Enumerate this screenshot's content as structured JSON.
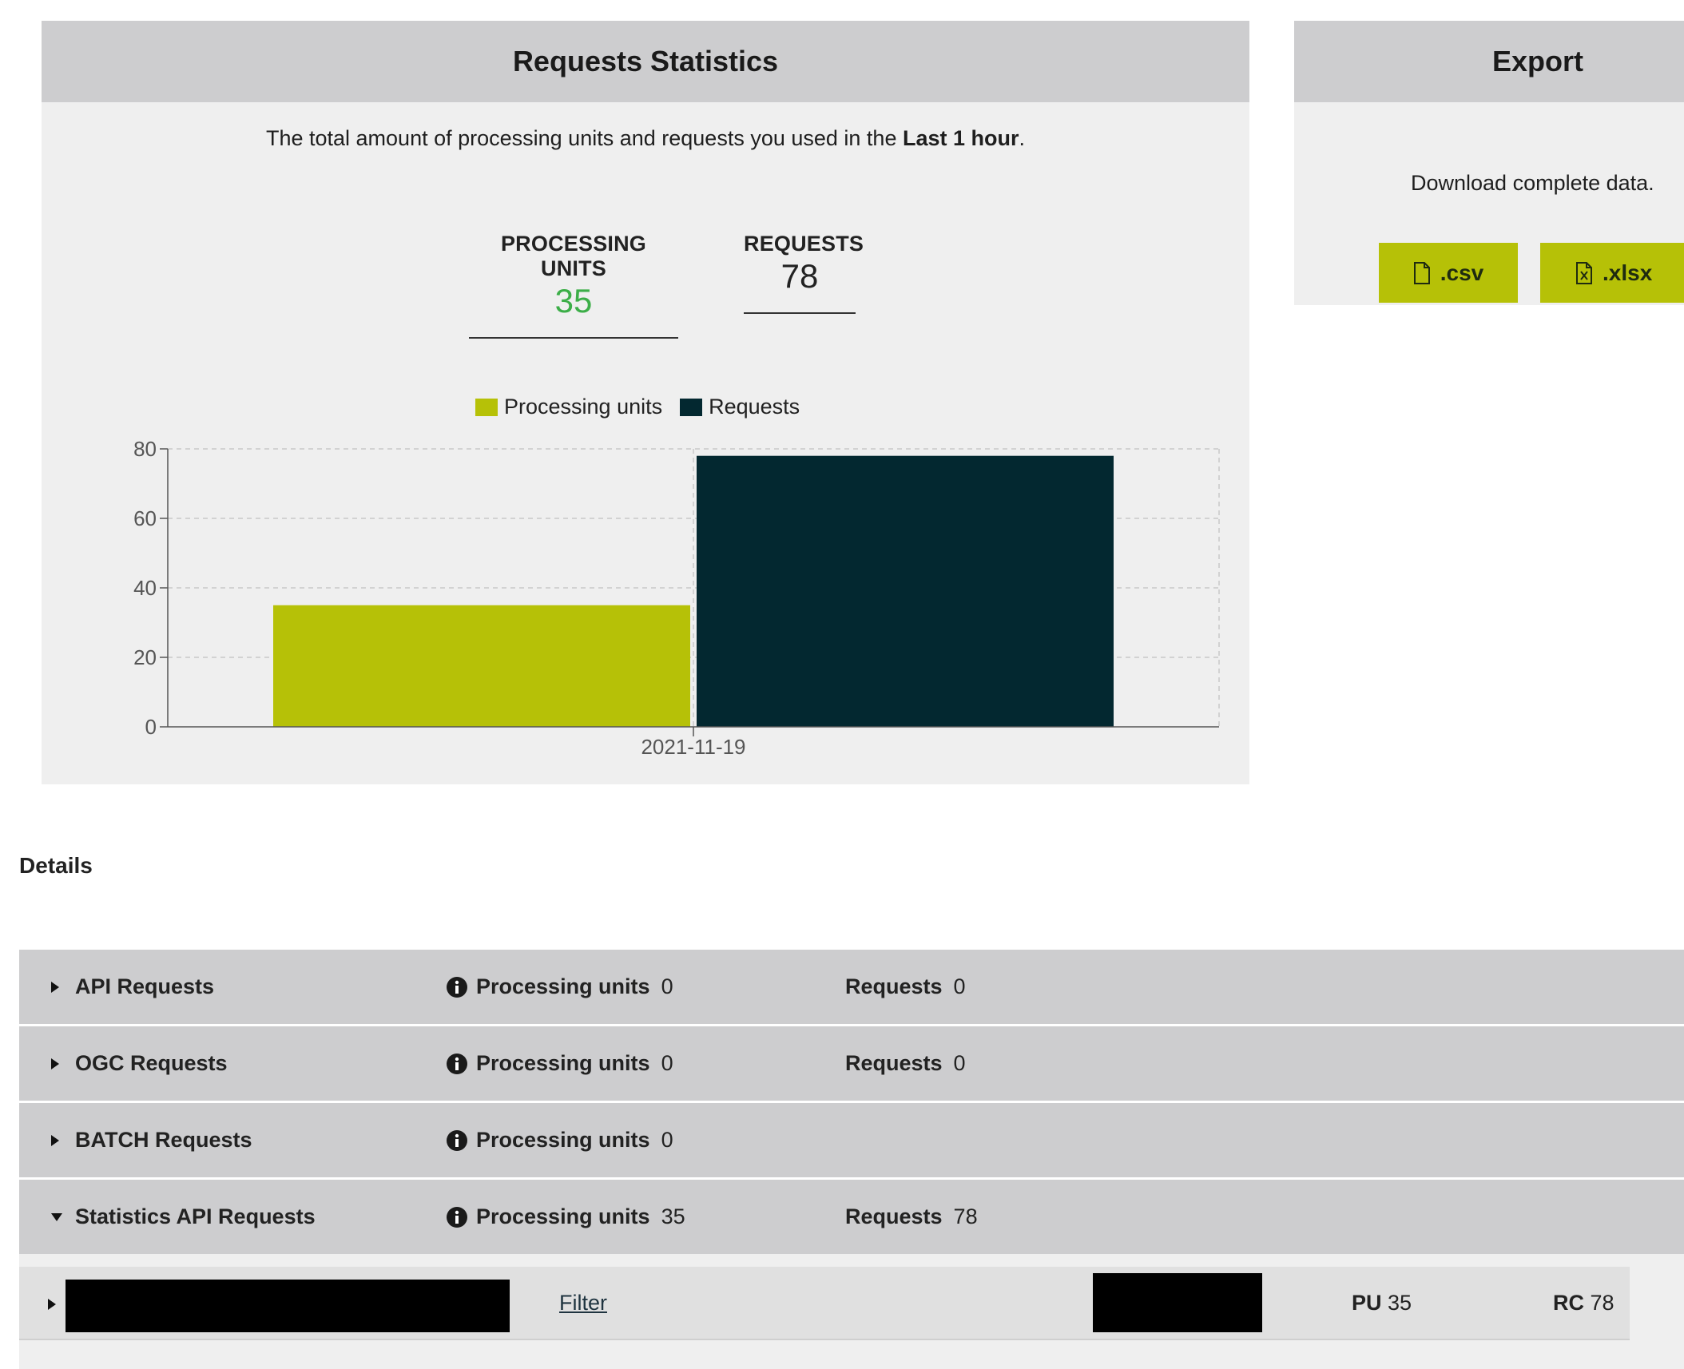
{
  "stats_card": {
    "title": "Requests Statistics",
    "description_prefix": "The total amount of processing units and requests you used in the ",
    "description_period": "Last 1 hour",
    "description_suffix": ".",
    "metrics": {
      "processing_units_label": "PROCESSING UNITS",
      "processing_units_value": "35",
      "requests_label": "REQUESTS",
      "requests_value": "78"
    },
    "legend": {
      "processing_units": "Processing units",
      "requests": "Requests"
    }
  },
  "chart_data": {
    "type": "bar",
    "categories": [
      "2021-11-19"
    ],
    "series": [
      {
        "name": "Processing units",
        "values": [
          35
        ],
        "color": "#b6c107"
      },
      {
        "name": "Requests",
        "values": [
          78
        ],
        "color": "#032830"
      }
    ],
    "ylim": [
      0,
      80
    ],
    "yticks": [
      0,
      20,
      40,
      60,
      80
    ],
    "grid": true,
    "legend_position": "top-center"
  },
  "export_card": {
    "title": "Export",
    "description": "Download complete data.",
    "csv_label": ".csv",
    "xlsx_label": ".xlsx"
  },
  "details": {
    "title": "Details",
    "rows": [
      {
        "title": "API Requests",
        "pu_label": "Processing units",
        "pu_value": "0",
        "req_label": "Requests",
        "req_value": "0",
        "expanded": false
      },
      {
        "title": "OGC Requests",
        "pu_label": "Processing units",
        "pu_value": "0",
        "req_label": "Requests",
        "req_value": "0",
        "expanded": false
      },
      {
        "title": "BATCH Requests",
        "pu_label": "Processing units",
        "pu_value": "0",
        "expanded": false
      },
      {
        "title": "Statistics API Requests",
        "pu_label": "Processing units",
        "pu_value": "35",
        "req_label": "Requests",
        "req_value": "78",
        "expanded": true
      }
    ],
    "sub_row": {
      "filter_label": "Filter",
      "pu_label": "PU",
      "pu_value": "35",
      "rc_label": "RC",
      "rc_value": "78"
    }
  },
  "colors": {
    "accent": "#b6c107",
    "dark": "#032830",
    "highlight_green": "#3cae48",
    "header_gray": "#cdcdcf",
    "panel_gray": "#efefef"
  },
  "icons": [
    "file-icon",
    "excel-file-icon",
    "info-icon",
    "caret-right-icon",
    "caret-down-icon"
  ]
}
